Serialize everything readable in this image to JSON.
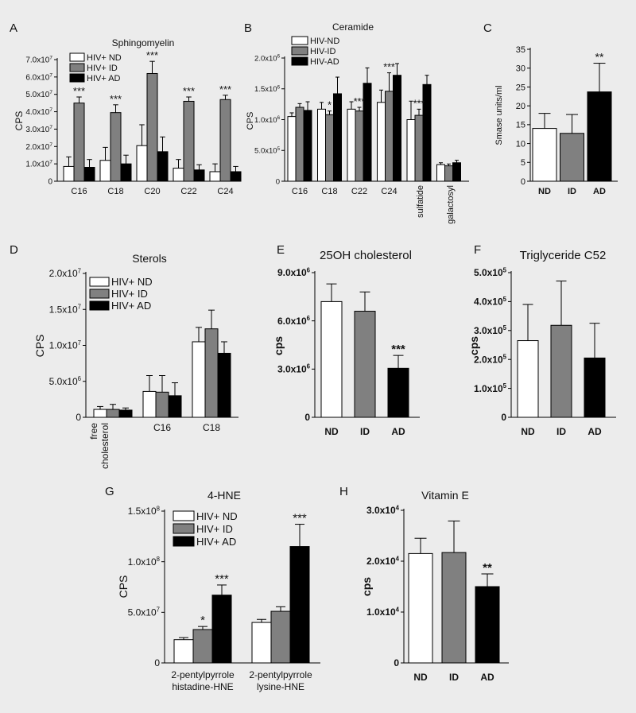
{
  "colors": {
    "background": "#ececec",
    "nd": "#ffffff",
    "id": "#808080",
    "ad": "#000000",
    "stroke": "#000000"
  },
  "chart_data": [
    {
      "panel": "A",
      "type": "bar",
      "title": "Sphingomyelin",
      "ylabel": "CPS",
      "xlabel": "",
      "categories": [
        "C16",
        "C18",
        "C20",
        "C22",
        "C24"
      ],
      "ylim": [
        0,
        70000000
      ],
      "yticks": [
        {
          "value": 0,
          "mant": "0",
          "exp": ""
        },
        {
          "value": 10000000,
          "mant": "1.0x10",
          "exp": "7"
        },
        {
          "value": 20000000,
          "mant": "2.0x10",
          "exp": "7"
        },
        {
          "value": 30000000,
          "mant": "3.0x10",
          "exp": "7"
        },
        {
          "value": 40000000,
          "mant": "4.0x10",
          "exp": "7"
        },
        {
          "value": 50000000,
          "mant": "5.0x10",
          "exp": "7"
        },
        {
          "value": 60000000,
          "mant": "6.0x10",
          "exp": "7"
        },
        {
          "value": 70000000,
          "mant": "7.0x10",
          "exp": "7"
        }
      ],
      "series": [
        {
          "name": "HIV+ ND",
          "values": [
            8500000,
            12000000,
            20500000,
            7500000,
            5500000
          ],
          "errors": [
            5500000,
            7500000,
            12000000,
            5000000,
            4500000
          ]
        },
        {
          "name": "HIV+ ID",
          "values": [
            45000000,
            39500000,
            62000000,
            46000000,
            47000000
          ],
          "errors": [
            3500000,
            4500000,
            7000000,
            2500000,
            2500000
          ]
        },
        {
          "name": "HIV+ AD",
          "values": [
            8000000,
            10000000,
            17000000,
            6500000,
            5500000
          ],
          "errors": [
            4500000,
            5000000,
            8500000,
            3000000,
            3000000
          ]
        }
      ],
      "annotations": [
        {
          "category": 0,
          "text": "***"
        },
        {
          "category": 1,
          "text": "***"
        },
        {
          "category": 2,
          "text": "***"
        },
        {
          "category": 3,
          "text": "***"
        },
        {
          "category": 4,
          "text": "***"
        }
      ],
      "legend": "top-left"
    },
    {
      "panel": "B",
      "type": "bar",
      "title": "Ceramide",
      "ylabel": "CPS",
      "xlabel": "",
      "categories": [
        "C16",
        "C18",
        "C22",
        "C24",
        "sulfatide",
        "galactosyl"
      ],
      "ylim": [
        0,
        2000000
      ],
      "yticks": [
        {
          "value": 0,
          "mant": "0",
          "exp": ""
        },
        {
          "value": 500000,
          "mant": "5.0x10",
          "exp": "5"
        },
        {
          "value": 1000000,
          "mant": "1.0x10",
          "exp": "6"
        },
        {
          "value": 1500000,
          "mant": "1.5x10",
          "exp": "6"
        },
        {
          "value": 2000000,
          "mant": "2.0x10",
          "exp": "6"
        }
      ],
      "series": [
        {
          "name": "HIV-ND",
          "values": [
            1050000,
            1170000,
            1170000,
            1280000,
            1000000,
            270000
          ],
          "errors": [
            60000,
            110000,
            120000,
            200000,
            300000,
            30000
          ]
        },
        {
          "name": "HIV-ID",
          "values": [
            1200000,
            1080000,
            1140000,
            1460000,
            1070000,
            250000
          ],
          "errors": [
            60000,
            60000,
            60000,
            300000,
            100000,
            30000
          ]
        },
        {
          "name": "HIV-AD",
          "values": [
            1150000,
            1420000,
            1590000,
            1720000,
            1570000,
            300000
          ],
          "errors": [
            140000,
            270000,
            250000,
            190000,
            150000,
            40000
          ]
        }
      ],
      "annotations": [
        {
          "category": 1,
          "text": "*"
        },
        {
          "category": 2,
          "text": "***"
        },
        {
          "category": 3,
          "text": "***"
        },
        {
          "category": 4,
          "text": "***"
        }
      ],
      "legend": "top-left"
    },
    {
      "panel": "C",
      "type": "bar",
      "title": "",
      "ylabel": "Smase units/ml",
      "xlabel": "",
      "categories": [
        "ND",
        "ID",
        "AD"
      ],
      "ylim": [
        0,
        35
      ],
      "yticks": [
        {
          "value": 0,
          "mant": "0",
          "exp": ""
        },
        {
          "value": 5,
          "mant": "5",
          "exp": ""
        },
        {
          "value": 10,
          "mant": "10",
          "exp": ""
        },
        {
          "value": 15,
          "mant": "15",
          "exp": ""
        },
        {
          "value": 20,
          "mant": "20",
          "exp": ""
        },
        {
          "value": 25,
          "mant": "25",
          "exp": ""
        },
        {
          "value": 30,
          "mant": "30",
          "exp": ""
        },
        {
          "value": 35,
          "mant": "35",
          "exp": ""
        }
      ],
      "series": [
        {
          "name": "",
          "values": [
            14,
            12.7,
            23.7
          ],
          "errors": [
            4,
            5,
            7.6
          ]
        }
      ],
      "annotations": [
        {
          "category": 2,
          "text": "**"
        }
      ]
    },
    {
      "panel": "D",
      "type": "bar",
      "title": "Sterols",
      "ylabel": "CPS",
      "xlabel": "",
      "categories": [
        "free\ncholesterol",
        "C16",
        "C18"
      ],
      "ylim": [
        0,
        20000000
      ],
      "yticks": [
        {
          "value": 0,
          "mant": "0",
          "exp": ""
        },
        {
          "value": 5000000,
          "mant": "5.0x10",
          "exp": "6"
        },
        {
          "value": 10000000,
          "mant": "1.0x10",
          "exp": "7"
        },
        {
          "value": 15000000,
          "mant": "1.5x10",
          "exp": "7"
        },
        {
          "value": 20000000,
          "mant": "2.0x10",
          "exp": "7"
        }
      ],
      "series": [
        {
          "name": "HIV+ ND",
          "values": [
            1100000,
            3600000,
            10500000
          ],
          "errors": [
            400000,
            2200000,
            2000000
          ]
        },
        {
          "name": "HIV+ ID",
          "values": [
            1100000,
            3500000,
            12300000
          ],
          "errors": [
            700000,
            2300000,
            2600000
          ]
        },
        {
          "name": "HIV+ AD",
          "values": [
            1000000,
            3000000,
            8900000
          ],
          "errors": [
            300000,
            1800000,
            1600000
          ]
        }
      ],
      "annotations": [],
      "legend": "top-right"
    },
    {
      "panel": "E",
      "type": "bar",
      "title": "25OH cholesterol",
      "ylabel": "cps",
      "xlabel": "",
      "categories": [
        "ND",
        "ID",
        "AD"
      ],
      "ylim": [
        0,
        9000000
      ],
      "yticks": [
        {
          "value": 0,
          "mant": "0",
          "exp": ""
        },
        {
          "value": 3000000,
          "mant": "3.0x10",
          "exp": "6"
        },
        {
          "value": 6000000,
          "mant": "6.0x10",
          "exp": "6"
        },
        {
          "value": 9000000,
          "mant": "9.0x10",
          "exp": "6"
        }
      ],
      "series": [
        {
          "name": "",
          "values": [
            7200000,
            6600000,
            3050000
          ],
          "errors": [
            1100000,
            1200000,
            800000
          ]
        }
      ],
      "annotations": [
        {
          "category": 2,
          "text": "***"
        }
      ]
    },
    {
      "panel": "F",
      "type": "bar",
      "title": "Triglyceride C52",
      "ylabel": "cps",
      "xlabel": "",
      "categories": [
        "ND",
        "ID",
        "AD"
      ],
      "ylim": [
        0,
        500000
      ],
      "yticks": [
        {
          "value": 0,
          "mant": "0",
          "exp": ""
        },
        {
          "value": 100000,
          "mant": "1.0x10",
          "exp": "5"
        },
        {
          "value": 200000,
          "mant": "2.0x10",
          "exp": "5"
        },
        {
          "value": 300000,
          "mant": "3.0x10",
          "exp": "5"
        },
        {
          "value": 400000,
          "mant": "4.0x10",
          "exp": "5"
        },
        {
          "value": 500000,
          "mant": "5.0x10",
          "exp": "5"
        }
      ],
      "series": [
        {
          "name": "",
          "values": [
            265000,
            318000,
            205000
          ],
          "errors": [
            125000,
            153000,
            120000
          ]
        }
      ],
      "annotations": []
    },
    {
      "panel": "G",
      "type": "bar",
      "title": "4-HNE",
      "ylabel": "CPS",
      "xlabel": "",
      "categories": [
        "2-pentylpyrrole\nhistadine-HNE",
        "2-pentylpyrrole\nlysine-HNE"
      ],
      "ylim": [
        0,
        150000000
      ],
      "yticks": [
        {
          "value": 0,
          "mant": "0",
          "exp": ""
        },
        {
          "value": 50000000,
          "mant": "5.0x10",
          "exp": "7"
        },
        {
          "value": 100000000,
          "mant": "1.0x10",
          "exp": "8"
        },
        {
          "value": 150000000,
          "mant": "1.5x10",
          "exp": "8"
        }
      ],
      "series": [
        {
          "name": "HIV+ ND",
          "values": [
            23000000,
            40000000
          ],
          "errors": [
            2000000,
            3000000
          ]
        },
        {
          "name": "HIV+ ID",
          "values": [
            33000000,
            51000000
          ],
          "errors": [
            3000000,
            4500000
          ]
        },
        {
          "name": "HIV+ AD",
          "values": [
            67000000,
            115000000
          ],
          "errors": [
            10000000,
            22000000
          ]
        }
      ],
      "annotations": [
        {
          "category": 0,
          "series": 1,
          "text": "*"
        },
        {
          "category": 0,
          "series": 2,
          "text": "***"
        },
        {
          "category": 1,
          "series": 2,
          "text": "***"
        }
      ],
      "legend": "top-left"
    },
    {
      "panel": "H",
      "type": "bar",
      "title": "Vitamin E",
      "ylabel": "cps",
      "xlabel": "",
      "categories": [
        "ND",
        "ID",
        "AD"
      ],
      "ylim": [
        0,
        30000
      ],
      "yticks": [
        {
          "value": 0,
          "mant": "0",
          "exp": ""
        },
        {
          "value": 10000,
          "mant": "1.0x10",
          "exp": "4"
        },
        {
          "value": 20000,
          "mant": "2.0x10",
          "exp": "4"
        },
        {
          "value": 30000,
          "mant": "3.0x10",
          "exp": "4"
        }
      ],
      "series": [
        {
          "name": "",
          "values": [
            21500,
            21700,
            15000
          ],
          "errors": [
            3000,
            6200,
            2500
          ]
        }
      ],
      "annotations": [
        {
          "category": 2,
          "text": "**"
        }
      ]
    }
  ]
}
